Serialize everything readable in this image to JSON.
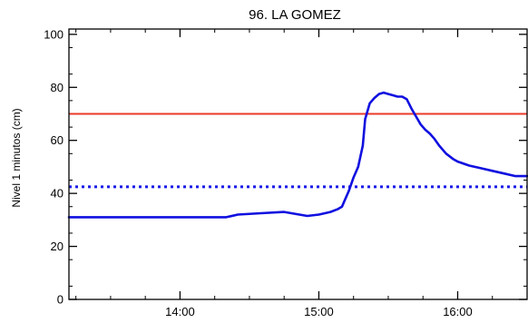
{
  "chart_data": {
    "type": "line",
    "title": "96. LA GOMEZ",
    "ylabel": "Nivel 1 minutos (cm)",
    "xlabel": "",
    "xlim": [
      "13:12",
      "16:30"
    ],
    "ylim": [
      0,
      102
    ],
    "x_ticks": [
      "14:00",
      "15:00",
      "16:00"
    ],
    "y_ticks": [
      0,
      20,
      40,
      60,
      80,
      100
    ],
    "grid": false,
    "colors": {
      "series": "#1010e0",
      "threshold": "#e83a2a",
      "reference": "#1a1ae8",
      "axis": "#000000"
    },
    "reference_lines": [
      {
        "y": 70,
        "style": "solid",
        "color": "#e83a2a"
      },
      {
        "y": 42.5,
        "style": "dotted",
        "color": "#1a1ae8"
      }
    ],
    "series": [
      {
        "x": [
          "13:12",
          "13:30",
          "14:00",
          "14:20",
          "14:25",
          "14:35",
          "14:45",
          "14:55",
          "15:00",
          "15:05",
          "15:08",
          "15:10",
          "15:11",
          "15:13",
          "15:15",
          "15:17",
          "15:19",
          "15:20",
          "15:22",
          "15:24",
          "15:26",
          "15:28",
          "15:30",
          "15:32",
          "15:34",
          "15:36",
          "15:38",
          "15:40",
          "15:42",
          "15:44",
          "15:46",
          "15:48",
          "15:50",
          "15:52",
          "15:55",
          "15:58",
          "16:00",
          "16:05",
          "16:10",
          "16:15",
          "16:20",
          "16:25",
          "16:30"
        ],
        "y": [
          31,
          31,
          31,
          31,
          32,
          32.5,
          33,
          31.5,
          32,
          33,
          34,
          35,
          37,
          41,
          46,
          50,
          58,
          68,
          74,
          76,
          77.5,
          78,
          77.5,
          77,
          76.5,
          76.5,
          75.5,
          72,
          69,
          66,
          64,
          62.5,
          60.5,
          58,
          55,
          53,
          52,
          50.5,
          49.5,
          48.5,
          47.5,
          46.5,
          46.5
        ]
      }
    ]
  }
}
